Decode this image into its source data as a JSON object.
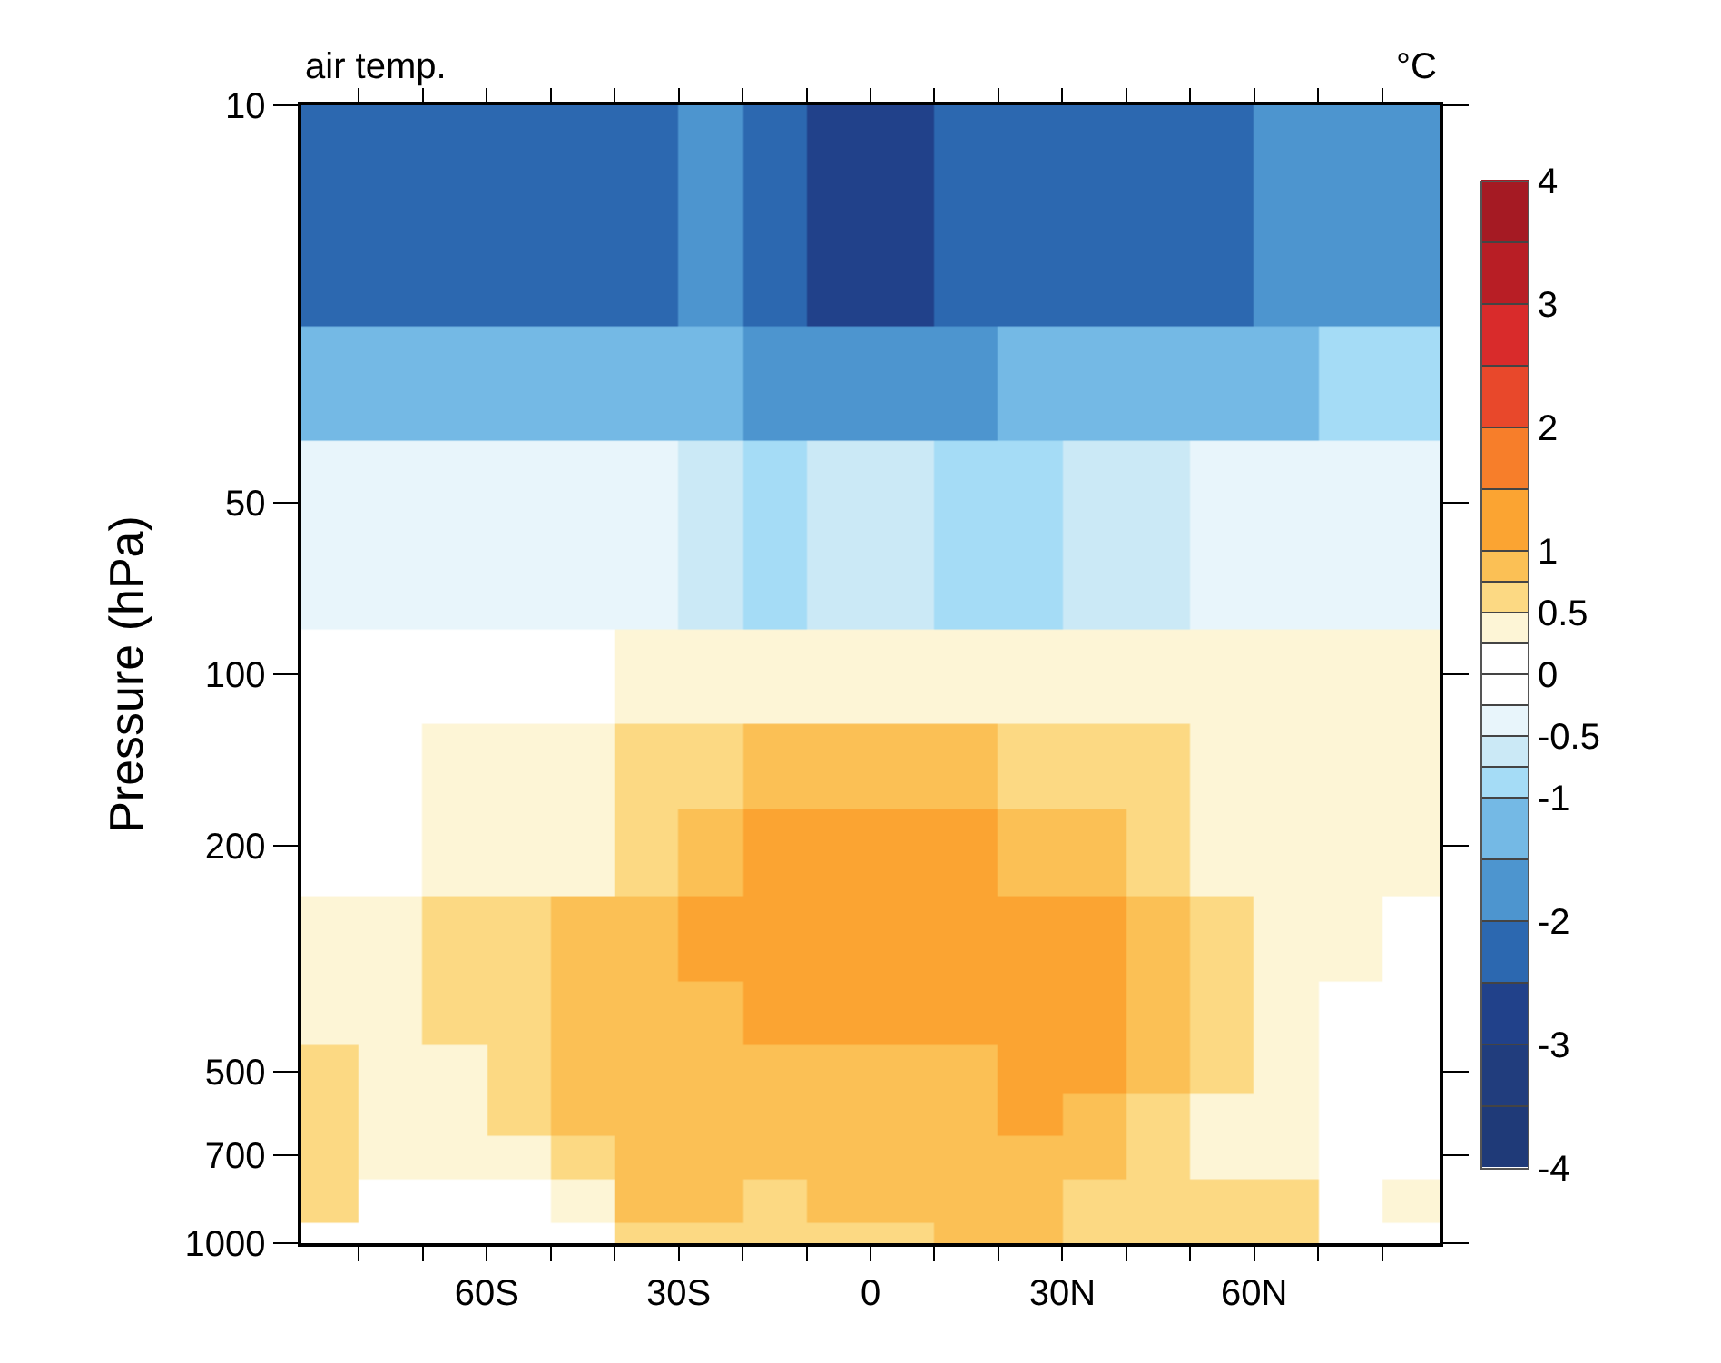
{
  "chart_data": {
    "type": "heatmap",
    "title": "air temp.",
    "clabel": "°C",
    "ylabel": "Pressure (hPa)",
    "x": [
      -85,
      -75,
      -65,
      -55,
      -45,
      -35,
      -25,
      -15,
      -5,
      5,
      15,
      25,
      35,
      45,
      55,
      65,
      75,
      85
    ],
    "y": [
      10,
      20,
      30,
      50,
      70,
      100,
      150,
      200,
      300,
      400,
      500,
      600,
      700,
      850,
      1000
    ],
    "cells": [
      [
        -2.25,
        -2.25,
        -2.25,
        -2.25,
        -2.25,
        -2.25,
        -1.75,
        -2.25,
        -2.75,
        -2.75,
        -2.25,
        -2.25,
        -2.25,
        -2.25,
        -2.25,
        -1.75,
        -1.75,
        -1.75
      ],
      [
        -2.25,
        -2.25,
        -2.25,
        -2.25,
        -2.25,
        -2.25,
        -1.75,
        -2.25,
        -2.75,
        -2.75,
        -2.25,
        -2.25,
        -2.25,
        -2.25,
        -2.25,
        -1.75,
        -1.75,
        -1.75
      ],
      [
        -1.25,
        -1.25,
        -1.25,
        -1.25,
        -1.25,
        -1.25,
        -1.25,
        -1.75,
        -1.75,
        -1.75,
        -1.75,
        -1.25,
        -1.25,
        -1.25,
        -1.25,
        -1.25,
        -0.9,
        -0.9
      ],
      [
        -0.4,
        -0.4,
        -0.4,
        -0.4,
        -0.4,
        -0.4,
        -0.6,
        -0.9,
        -0.6,
        -0.6,
        -0.9,
        -0.9,
        -0.6,
        -0.6,
        -0.4,
        -0.4,
        -0.4,
        -0.4
      ],
      [
        -0.4,
        -0.4,
        -0.4,
        -0.4,
        -0.4,
        -0.4,
        -0.6,
        -0.9,
        -0.6,
        -0.6,
        -0.9,
        -0.9,
        -0.6,
        -0.6,
        -0.4,
        -0.4,
        -0.4,
        -0.4
      ],
      [
        0,
        0,
        0,
        0,
        0,
        0.4,
        0.4,
        0.4,
        0.4,
        0.4,
        0.4,
        0.4,
        0.4,
        0.4,
        0.4,
        0.4,
        0.4,
        0.4
      ],
      [
        0,
        0,
        0.4,
        0.4,
        0.4,
        0.6,
        0.6,
        0.9,
        0.9,
        0.9,
        0.9,
        0.6,
        0.6,
        0.6,
        0.4,
        0.4,
        0.4,
        0.4
      ],
      [
        0,
        0,
        0.4,
        0.4,
        0.4,
        0.6,
        0.9,
        1.2,
        1.2,
        1.2,
        1.2,
        0.9,
        0.9,
        0.6,
        0.4,
        0.4,
        0.4,
        0.4
      ],
      [
        0.4,
        0.4,
        0.6,
        0.6,
        0.9,
        0.9,
        1.2,
        1.2,
        1.2,
        1.2,
        1.2,
        1.2,
        1.2,
        0.9,
        0.6,
        0.4,
        0.4,
        0
      ],
      [
        0.4,
        0.4,
        0.6,
        0.6,
        0.9,
        0.9,
        0.9,
        1.2,
        1.2,
        1.2,
        1.2,
        1.2,
        1.2,
        0.9,
        0.6,
        0.4,
        0,
        0
      ],
      [
        0.6,
        0.4,
        0.4,
        0.6,
        0.9,
        0.9,
        0.9,
        0.9,
        0.9,
        0.9,
        0.9,
        1.2,
        1.2,
        0.9,
        0.6,
        0.4,
        0,
        0
      ],
      [
        0.6,
        0.4,
        0.4,
        0.6,
        0.9,
        0.9,
        0.9,
        0.9,
        0.9,
        0.9,
        0.9,
        1.2,
        0.9,
        0.6,
        0.4,
        0.4,
        0,
        0
      ],
      [
        0.6,
        0.4,
        0.4,
        0.4,
        0.6,
        0.9,
        0.9,
        0.9,
        0.9,
        0.9,
        0.9,
        0.9,
        0.9,
        0.6,
        0.4,
        0.4,
        0,
        0
      ],
      [
        0.6,
        0,
        0,
        0,
        0.4,
        0.9,
        0.9,
        0.6,
        0.9,
        0.9,
        0.9,
        0.9,
        0.6,
        0.6,
        0.6,
        0.6,
        0,
        0.4
      ],
      [
        0,
        0,
        0,
        0,
        0,
        0.6,
        0.6,
        0.6,
        0.6,
        0.6,
        0.9,
        0.9,
        0.6,
        0.6,
        0.6,
        0.6,
        0,
        0
      ]
    ],
    "clim": [
      -4,
      4
    ],
    "cticks": [
      -4,
      {
        "value": -3.5,
        "label": null
      },
      -3,
      {
        "value": -2.5,
        "label": null
      },
      -2,
      {
        "value": -1.5,
        "label": null
      },
      -1,
      {
        "value": -0.75,
        "label": null
      },
      -0.5,
      {
        "value": -0.25,
        "label": null
      },
      0,
      {
        "value": 0.25,
        "label": null
      },
      0.5,
      {
        "value": 0.75,
        "label": null
      },
      1,
      {
        "value": 1.5,
        "label": null
      },
      2,
      {
        "value": 2.5,
        "label": null
      },
      3,
      {
        "value": 3.5,
        "label": null
      },
      4
    ],
    "colors": [
      "#1f3a78",
      "#213d7d",
      "#21418a",
      "#2c68b0",
      "#4d95cf",
      "#74b9e5",
      "#a5dcf6",
      "#cbe9f6",
      "#e8f5fb",
      "#ffffff",
      "#ffffff",
      "#fdf5d6",
      "#fcd983",
      "#fbc055",
      "#fba432",
      "#f77e2a",
      "#e8482b",
      "#d92b2b",
      "#b81e25",
      "#a51a23"
    ],
    "log": "y",
    "xlim": [
      -89,
      89
    ],
    "xticks": [
      {
        "value": -80,
        "label": null
      },
      {
        "value": -70,
        "label": null
      },
      {
        "value": -60,
        "label": "60S"
      },
      {
        "value": -50,
        "label": null
      },
      {
        "value": -40,
        "label": null
      },
      {
        "value": -30,
        "label": "30S"
      },
      {
        "value": -20,
        "label": null
      },
      {
        "value": -10,
        "label": null
      },
      0,
      {
        "value": 10,
        "label": null
      },
      {
        "value": 20,
        "label": null
      },
      {
        "value": 30,
        "label": "30N"
      },
      {
        "value": 40,
        "label": null
      },
      {
        "value": 50,
        "label": null
      },
      {
        "value": 60,
        "label": "60N"
      },
      {
        "value": 70,
        "label": null
      },
      {
        "value": 80,
        "label": null
      }
    ],
    "ylim": [
      1000,
      10
    ],
    "yticks": [
      10,
      50,
      100,
      200,
      500,
      700,
      1000
    ]
  }
}
